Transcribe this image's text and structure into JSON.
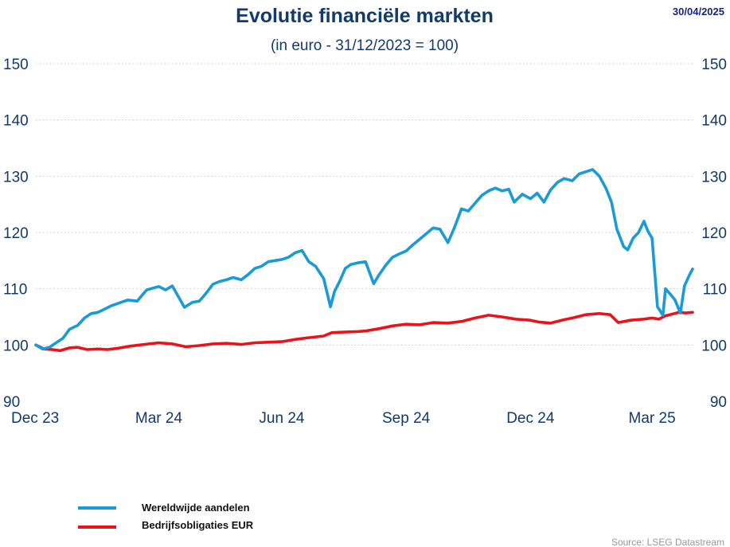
{
  "date_stamp": "30/04/2025",
  "source": "Source: LSEG Datastream",
  "chart_data": {
    "type": "line",
    "title": "Evolutie financiële markten",
    "subtitle": "(in euro - 31/12/2023 = 100)",
    "ylim": [
      90,
      150
    ],
    "yticks": [
      90,
      100,
      110,
      120,
      130,
      140,
      150
    ],
    "y_axis_sides": [
      "left",
      "right"
    ],
    "xlim": [
      "2023-12-31",
      "2025-04-30"
    ],
    "xticks": [
      {
        "date": "2023-12-31",
        "label": "Dec 23"
      },
      {
        "date": "2024-03-31",
        "label": "Mar 24"
      },
      {
        "date": "2024-06-30",
        "label": "Jun 24"
      },
      {
        "date": "2024-09-30",
        "label": "Sep 24"
      },
      {
        "date": "2024-12-31",
        "label": "Dec 24"
      },
      {
        "date": "2025-03-31",
        "label": "Mar 25"
      }
    ],
    "grid": "horizontal-dotted",
    "legend_position": "bottom-left",
    "series": [
      {
        "name": "Wereldwijde aandelen",
        "color": "#1a9ad6",
        "points": [
          [
            "2023-12-31",
            100
          ],
          [
            "2024-01-05",
            99.3
          ],
          [
            "2024-01-10",
            99.6
          ],
          [
            "2024-01-15",
            100.4
          ],
          [
            "2024-01-20",
            101.2
          ],
          [
            "2024-01-25",
            102.8
          ],
          [
            "2024-01-31",
            103.5
          ],
          [
            "2024-02-05",
            104.8
          ],
          [
            "2024-02-10",
            105.6
          ],
          [
            "2024-02-15",
            105.8
          ],
          [
            "2024-02-20",
            106.4
          ],
          [
            "2024-02-25",
            107.0
          ],
          [
            "2024-03-01",
            107.4
          ],
          [
            "2024-03-08",
            108.0
          ],
          [
            "2024-03-15",
            107.8
          ],
          [
            "2024-03-22",
            109.8
          ],
          [
            "2024-03-31",
            110.4
          ],
          [
            "2024-04-05",
            109.8
          ],
          [
            "2024-04-10",
            110.5
          ],
          [
            "2024-04-15",
            108.4
          ],
          [
            "2024-04-19",
            106.7
          ],
          [
            "2024-04-25",
            107.6
          ],
          [
            "2024-04-30",
            107.8
          ],
          [
            "2024-05-05",
            109.2
          ],
          [
            "2024-05-10",
            110.8
          ],
          [
            "2024-05-15",
            111.3
          ],
          [
            "2024-05-20",
            111.6
          ],
          [
            "2024-05-25",
            112.0
          ],
          [
            "2024-05-31",
            111.6
          ],
          [
            "2024-06-05",
            112.5
          ],
          [
            "2024-06-10",
            113.6
          ],
          [
            "2024-06-15",
            114.0
          ],
          [
            "2024-06-20",
            114.8
          ],
          [
            "2024-06-25",
            115.0
          ],
          [
            "2024-06-30",
            115.2
          ],
          [
            "2024-07-05",
            115.6
          ],
          [
            "2024-07-10",
            116.4
          ],
          [
            "2024-07-15",
            116.8
          ],
          [
            "2024-07-20",
            114.8
          ],
          [
            "2024-07-25",
            114.0
          ],
          [
            "2024-07-31",
            111.8
          ],
          [
            "2024-08-05",
            106.8
          ],
          [
            "2024-08-08",
            109.5
          ],
          [
            "2024-08-12",
            111.4
          ],
          [
            "2024-08-16",
            113.6
          ],
          [
            "2024-08-20",
            114.3
          ],
          [
            "2024-08-25",
            114.6
          ],
          [
            "2024-08-31",
            114.8
          ],
          [
            "2024-09-06",
            110.9
          ],
          [
            "2024-09-10",
            112.5
          ],
          [
            "2024-09-15",
            114.2
          ],
          [
            "2024-09-20",
            115.6
          ],
          [
            "2024-09-25",
            116.2
          ],
          [
            "2024-09-30",
            116.7
          ],
          [
            "2024-10-05",
            117.8
          ],
          [
            "2024-10-10",
            118.8
          ],
          [
            "2024-10-15",
            119.8
          ],
          [
            "2024-10-20",
            120.8
          ],
          [
            "2024-10-25",
            120.6
          ],
          [
            "2024-10-31",
            118.2
          ],
          [
            "2024-11-05",
            121.0
          ],
          [
            "2024-11-10",
            124.2
          ],
          [
            "2024-11-15",
            123.8
          ],
          [
            "2024-11-20",
            125.2
          ],
          [
            "2024-11-25",
            126.6
          ],
          [
            "2024-11-30",
            127.4
          ],
          [
            "2024-12-05",
            127.9
          ],
          [
            "2024-12-10",
            127.4
          ],
          [
            "2024-12-15",
            127.7
          ],
          [
            "2024-12-19",
            125.4
          ],
          [
            "2024-12-25",
            126.8
          ],
          [
            "2024-12-31",
            126.0
          ],
          [
            "2025-01-05",
            127.0
          ],
          [
            "2025-01-10",
            125.4
          ],
          [
            "2025-01-15",
            127.6
          ],
          [
            "2025-01-20",
            128.9
          ],
          [
            "2025-01-25",
            129.6
          ],
          [
            "2025-01-31",
            129.2
          ],
          [
            "2025-02-05",
            130.4
          ],
          [
            "2025-02-10",
            130.8
          ],
          [
            "2025-02-15",
            131.2
          ],
          [
            "2025-02-20",
            130.0
          ],
          [
            "2025-02-25",
            127.8
          ],
          [
            "2025-03-01",
            125.4
          ],
          [
            "2025-03-05",
            120.6
          ],
          [
            "2025-03-10",
            117.5
          ],
          [
            "2025-03-13",
            116.9
          ],
          [
            "2025-03-17",
            119.0
          ],
          [
            "2025-03-21",
            120.0
          ],
          [
            "2025-03-25",
            122.0
          ],
          [
            "2025-03-28",
            120.2
          ],
          [
            "2025-03-31",
            119.0
          ],
          [
            "2025-04-04",
            106.8
          ],
          [
            "2025-04-08",
            105.3
          ],
          [
            "2025-04-10",
            110.0
          ],
          [
            "2025-04-14",
            108.9
          ],
          [
            "2025-04-17",
            108.0
          ],
          [
            "2025-04-21",
            105.7
          ],
          [
            "2025-04-24",
            110.5
          ],
          [
            "2025-04-28",
            112.6
          ],
          [
            "2025-04-30",
            113.5
          ]
        ]
      },
      {
        "name": "Bedrijfsobligaties EUR",
        "color": "#e8141b",
        "points": [
          [
            "2023-12-31",
            100
          ],
          [
            "2024-01-06",
            99.3
          ],
          [
            "2024-01-12",
            99.2
          ],
          [
            "2024-01-18",
            99.0
          ],
          [
            "2024-01-25",
            99.5
          ],
          [
            "2024-01-31",
            99.6
          ],
          [
            "2024-02-07",
            99.2
          ],
          [
            "2024-02-15",
            99.3
          ],
          [
            "2024-02-22",
            99.2
          ],
          [
            "2024-02-29",
            99.4
          ],
          [
            "2024-03-10",
            99.8
          ],
          [
            "2024-03-20",
            100.1
          ],
          [
            "2024-03-31",
            100.4
          ],
          [
            "2024-04-10",
            100.2
          ],
          [
            "2024-04-20",
            99.7
          ],
          [
            "2024-04-30",
            99.9
          ],
          [
            "2024-05-10",
            100.2
          ],
          [
            "2024-05-20",
            100.3
          ],
          [
            "2024-05-31",
            100.1
          ],
          [
            "2024-06-10",
            100.4
          ],
          [
            "2024-06-20",
            100.5
          ],
          [
            "2024-06-30",
            100.6
          ],
          [
            "2024-07-10",
            101.0
          ],
          [
            "2024-07-20",
            101.3
          ],
          [
            "2024-07-31",
            101.6
          ],
          [
            "2024-08-06",
            102.2
          ],
          [
            "2024-08-15",
            102.3
          ],
          [
            "2024-08-25",
            102.4
          ],
          [
            "2024-08-31",
            102.5
          ],
          [
            "2024-09-10",
            102.9
          ],
          [
            "2024-09-20",
            103.4
          ],
          [
            "2024-09-30",
            103.7
          ],
          [
            "2024-10-10",
            103.6
          ],
          [
            "2024-10-20",
            104.0
          ],
          [
            "2024-10-31",
            103.9
          ],
          [
            "2024-11-10",
            104.2
          ],
          [
            "2024-11-20",
            104.8
          ],
          [
            "2024-11-30",
            105.3
          ],
          [
            "2024-12-10",
            105.0
          ],
          [
            "2024-12-20",
            104.6
          ],
          [
            "2024-12-31",
            104.4
          ],
          [
            "2025-01-06",
            104.1
          ],
          [
            "2025-01-15",
            103.9
          ],
          [
            "2025-01-25",
            104.5
          ],
          [
            "2025-01-31",
            104.8
          ],
          [
            "2025-02-10",
            105.4
          ],
          [
            "2025-02-20",
            105.6
          ],
          [
            "2025-02-28",
            105.4
          ],
          [
            "2025-03-06",
            104.0
          ],
          [
            "2025-03-15",
            104.4
          ],
          [
            "2025-03-25",
            104.6
          ],
          [
            "2025-03-31",
            104.8
          ],
          [
            "2025-04-05",
            104.6
          ],
          [
            "2025-04-10",
            105.2
          ],
          [
            "2025-04-15",
            105.5
          ],
          [
            "2025-04-20",
            105.8
          ],
          [
            "2025-04-25",
            105.7
          ],
          [
            "2025-04-30",
            105.8
          ]
        ]
      }
    ]
  }
}
